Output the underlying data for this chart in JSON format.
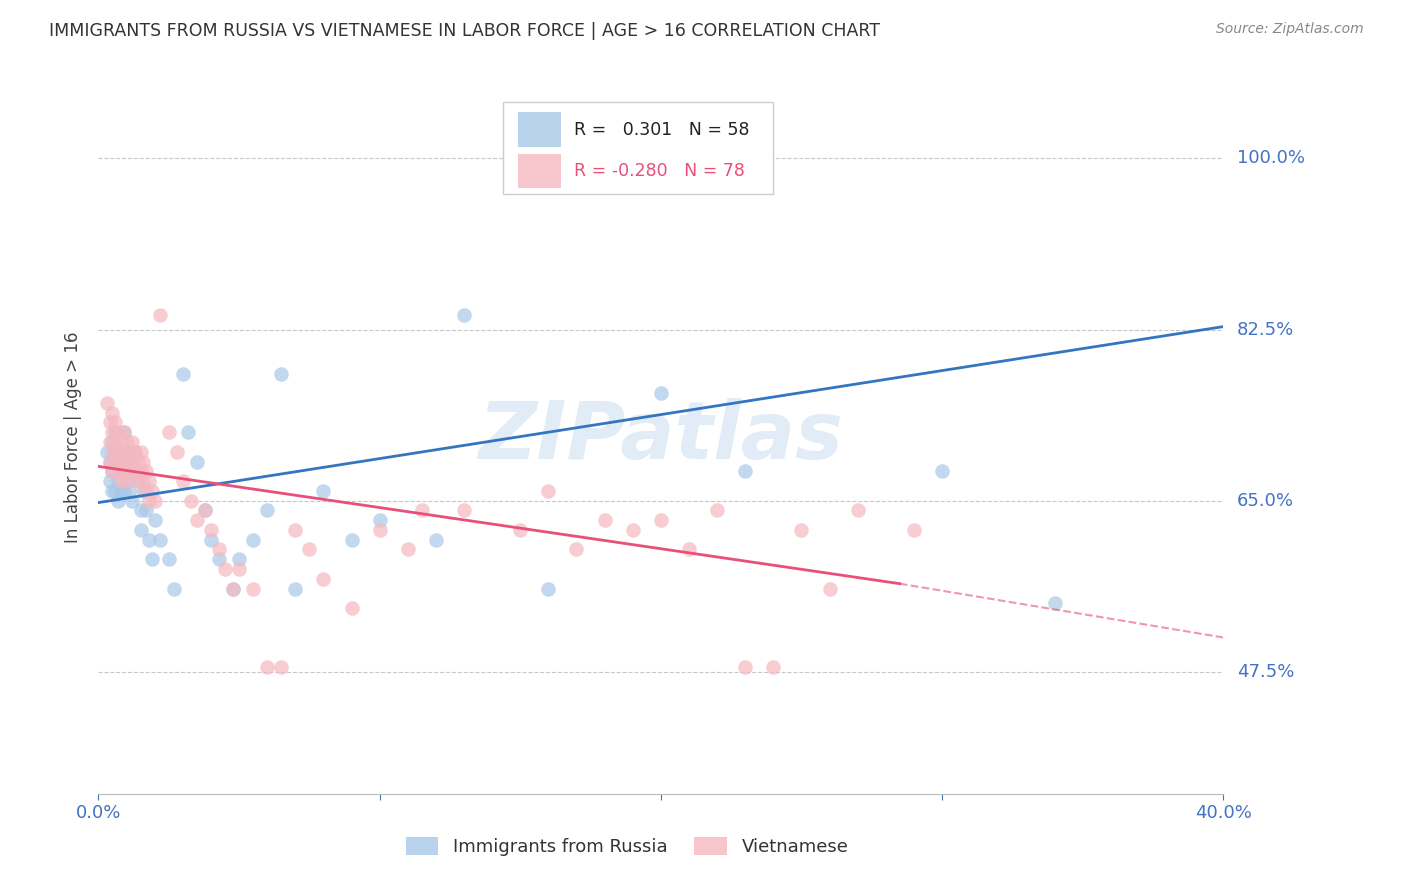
{
  "title": "IMMIGRANTS FROM RUSSIA VS VIETNAMESE IN LABOR FORCE | AGE > 16 CORRELATION CHART",
  "source": "Source: ZipAtlas.com",
  "ylabel": "In Labor Force | Age > 16",
  "xlim": [
    0.0,
    0.4
  ],
  "ylim": [
    0.35,
    1.08
  ],
  "hlines": [
    0.475,
    0.65,
    0.825,
    1.0
  ],
  "russia_color": "#a8c8e8",
  "vietnamese_color": "#f4b8c0",
  "russia_line_color": "#3375c0",
  "vietnamese_line_color": "#e8507a",
  "R_russia": 0.301,
  "N_russia": 58,
  "R_vietnamese": -0.28,
  "N_vietnamese": 78,
  "russia_trend": [
    0.0,
    0.648,
    0.4,
    0.828
  ],
  "viet_trend_solid": [
    0.0,
    0.685,
    0.285,
    0.565
  ],
  "viet_trend_dash": [
    0.285,
    0.565,
    0.4,
    0.51
  ],
  "russia_scatter": [
    [
      0.003,
      0.7
    ],
    [
      0.004,
      0.69
    ],
    [
      0.004,
      0.67
    ],
    [
      0.005,
      0.71
    ],
    [
      0.005,
      0.68
    ],
    [
      0.005,
      0.66
    ],
    [
      0.006,
      0.72
    ],
    [
      0.006,
      0.7
    ],
    [
      0.006,
      0.66
    ],
    [
      0.007,
      0.69
    ],
    [
      0.007,
      0.67
    ],
    [
      0.007,
      0.65
    ],
    [
      0.008,
      0.7
    ],
    [
      0.008,
      0.68
    ],
    [
      0.008,
      0.66
    ],
    [
      0.009,
      0.72
    ],
    [
      0.009,
      0.69
    ],
    [
      0.009,
      0.66
    ],
    [
      0.01,
      0.7
    ],
    [
      0.01,
      0.67
    ],
    [
      0.011,
      0.68
    ],
    [
      0.011,
      0.66
    ],
    [
      0.012,
      0.69
    ],
    [
      0.012,
      0.65
    ],
    [
      0.013,
      0.7
    ],
    [
      0.014,
      0.67
    ],
    [
      0.015,
      0.64
    ],
    [
      0.015,
      0.62
    ],
    [
      0.016,
      0.66
    ],
    [
      0.017,
      0.64
    ],
    [
      0.018,
      0.61
    ],
    [
      0.019,
      0.59
    ],
    [
      0.02,
      0.63
    ],
    [
      0.022,
      0.61
    ],
    [
      0.025,
      0.59
    ],
    [
      0.027,
      0.56
    ],
    [
      0.03,
      0.78
    ],
    [
      0.032,
      0.72
    ],
    [
      0.035,
      0.69
    ],
    [
      0.038,
      0.64
    ],
    [
      0.04,
      0.61
    ],
    [
      0.043,
      0.59
    ],
    [
      0.048,
      0.56
    ],
    [
      0.05,
      0.59
    ],
    [
      0.055,
      0.61
    ],
    [
      0.06,
      0.64
    ],
    [
      0.065,
      0.78
    ],
    [
      0.07,
      0.56
    ],
    [
      0.08,
      0.66
    ],
    [
      0.09,
      0.61
    ],
    [
      0.1,
      0.63
    ],
    [
      0.12,
      0.61
    ],
    [
      0.13,
      0.84
    ],
    [
      0.16,
      0.56
    ],
    [
      0.2,
      0.76
    ],
    [
      0.23,
      0.68
    ],
    [
      0.3,
      0.68
    ],
    [
      0.34,
      0.545
    ]
  ],
  "vietnamese_scatter": [
    [
      0.003,
      0.75
    ],
    [
      0.004,
      0.73
    ],
    [
      0.004,
      0.71
    ],
    [
      0.004,
      0.69
    ],
    [
      0.005,
      0.74
    ],
    [
      0.005,
      0.72
    ],
    [
      0.005,
      0.7
    ],
    [
      0.005,
      0.68
    ],
    [
      0.006,
      0.73
    ],
    [
      0.006,
      0.71
    ],
    [
      0.006,
      0.69
    ],
    [
      0.007,
      0.72
    ],
    [
      0.007,
      0.7
    ],
    [
      0.007,
      0.68
    ],
    [
      0.008,
      0.71
    ],
    [
      0.008,
      0.69
    ],
    [
      0.008,
      0.67
    ],
    [
      0.009,
      0.72
    ],
    [
      0.009,
      0.7
    ],
    [
      0.009,
      0.68
    ],
    [
      0.01,
      0.71
    ],
    [
      0.01,
      0.69
    ],
    [
      0.01,
      0.67
    ],
    [
      0.011,
      0.7
    ],
    [
      0.011,
      0.68
    ],
    [
      0.012,
      0.71
    ],
    [
      0.012,
      0.69
    ],
    [
      0.013,
      0.7
    ],
    [
      0.013,
      0.68
    ],
    [
      0.014,
      0.69
    ],
    [
      0.014,
      0.67
    ],
    [
      0.015,
      0.7
    ],
    [
      0.015,
      0.68
    ],
    [
      0.016,
      0.69
    ],
    [
      0.016,
      0.67
    ],
    [
      0.017,
      0.68
    ],
    [
      0.017,
      0.66
    ],
    [
      0.018,
      0.67
    ],
    [
      0.018,
      0.65
    ],
    [
      0.019,
      0.66
    ],
    [
      0.02,
      0.65
    ],
    [
      0.022,
      0.84
    ],
    [
      0.025,
      0.72
    ],
    [
      0.028,
      0.7
    ],
    [
      0.03,
      0.67
    ],
    [
      0.033,
      0.65
    ],
    [
      0.035,
      0.63
    ],
    [
      0.038,
      0.64
    ],
    [
      0.04,
      0.62
    ],
    [
      0.043,
      0.6
    ],
    [
      0.045,
      0.58
    ],
    [
      0.048,
      0.56
    ],
    [
      0.05,
      0.58
    ],
    [
      0.055,
      0.56
    ],
    [
      0.06,
      0.48
    ],
    [
      0.065,
      0.48
    ],
    [
      0.07,
      0.62
    ],
    [
      0.075,
      0.6
    ],
    [
      0.08,
      0.57
    ],
    [
      0.09,
      0.54
    ],
    [
      0.1,
      0.62
    ],
    [
      0.11,
      0.6
    ],
    [
      0.13,
      0.64
    ],
    [
      0.15,
      0.62
    ],
    [
      0.17,
      0.6
    ],
    [
      0.19,
      0.62
    ],
    [
      0.21,
      0.6
    ],
    [
      0.23,
      0.48
    ],
    [
      0.24,
      0.48
    ],
    [
      0.25,
      0.62
    ],
    [
      0.27,
      0.64
    ],
    [
      0.29,
      0.62
    ],
    [
      0.115,
      0.64
    ],
    [
      0.16,
      0.66
    ],
    [
      0.18,
      0.63
    ],
    [
      0.2,
      0.63
    ],
    [
      0.22,
      0.64
    ],
    [
      0.26,
      0.56
    ]
  ],
  "watermark": "ZIPatlas",
  "background_color": "#ffffff",
  "grid_color": "#c8c8c8",
  "title_color": "#333333",
  "axis_label_color": "#4472c4",
  "right_label_color": "#4472c4"
}
